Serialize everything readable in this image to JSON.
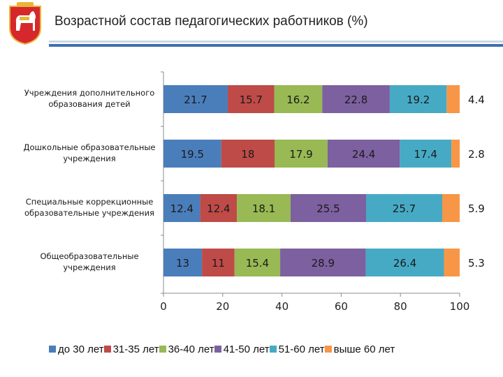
{
  "header": {
    "title": "Возрастной состав педагогических работников (%)"
  },
  "colors": {
    "accent": "#3f6fb0",
    "emblem_red": "#d6282c",
    "emblem_gold": "#e8b537"
  },
  "chart_data": {
    "type": "stacked-bar-horizontal",
    "title": "Возрастной состав педагогических работников (%)",
    "xlim": [
      0,
      100
    ],
    "x_ticks": [
      "0",
      "20",
      "40",
      "60",
      "80",
      "100"
    ],
    "legend_position": "bottom",
    "categories": [
      "Учреждения дополнительного образования детей",
      "Дошкольные образовательные учреждения",
      "Специальные коррекционные образовательные учреждения",
      "Общеобразовательные учреждения"
    ],
    "series": [
      {
        "name": "до 30 лет",
        "color": "#4a7ebb",
        "values": [
          21.7,
          19.5,
          12.4,
          13
        ]
      },
      {
        "name": "31-35 лет",
        "color": "#be4b48",
        "values": [
          15.7,
          18,
          12.4,
          11
        ]
      },
      {
        "name": "36-40 лет",
        "color": "#98b954",
        "values": [
          16.2,
          17.9,
          18.1,
          15.4
        ]
      },
      {
        "name": "41-50 лет",
        "color": "#7d60a0",
        "values": [
          22.8,
          24.4,
          25.5,
          28.9
        ]
      },
      {
        "name": "51-60 лет",
        "color": "#46aac5",
        "values": [
          19.2,
          17.4,
          25.7,
          26.4
        ]
      },
      {
        "name": "выше 60 лет",
        "color": "#f79646",
        "values": [
          4.4,
          2.8,
          5.9,
          5.3
        ]
      }
    ],
    "labels": [
      [
        "21.7",
        "15.7",
        "16.2",
        "22.8",
        "19.2",
        "4.4"
      ],
      [
        "19.5",
        "18",
        "17.9",
        "24.4",
        "17.4",
        "2.8"
      ],
      [
        "12.4",
        "12.4",
        "18.1",
        "25.5",
        "25.7",
        "5.9"
      ],
      [
        "13",
        "11",
        "15.4",
        "28.9",
        "26.4",
        "5.3"
      ]
    ]
  }
}
